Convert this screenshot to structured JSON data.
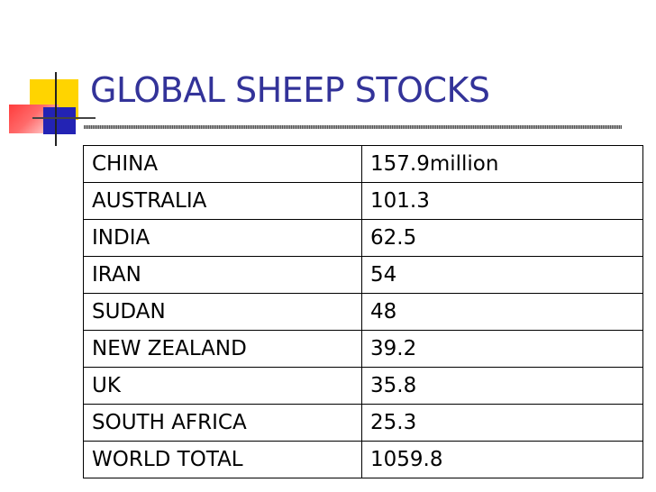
{
  "title": "GLOBAL SHEEP STOCKS",
  "colors": {
    "title": "#333399",
    "deco_yellow": "#ffd400",
    "deco_red": "#ff3c3c",
    "deco_blue": "#2323b4"
  },
  "table": {
    "rows": [
      {
        "country": "CHINA",
        "value": "157.9million"
      },
      {
        "country": "AUSTRALIA",
        "value": "101.3"
      },
      {
        "country": "INDIA",
        "value": "62.5"
      },
      {
        "country": "IRAN",
        "value": "54"
      },
      {
        "country": "SUDAN",
        "value": "48"
      },
      {
        "country": "NEW ZEALAND",
        "value": "39.2"
      },
      {
        "country": "UK",
        "value": "35.8"
      },
      {
        "country": "SOUTH AFRICA",
        "value": "25.3"
      },
      {
        "country": "WORLD TOTAL",
        "value": "1059.8"
      }
    ]
  }
}
